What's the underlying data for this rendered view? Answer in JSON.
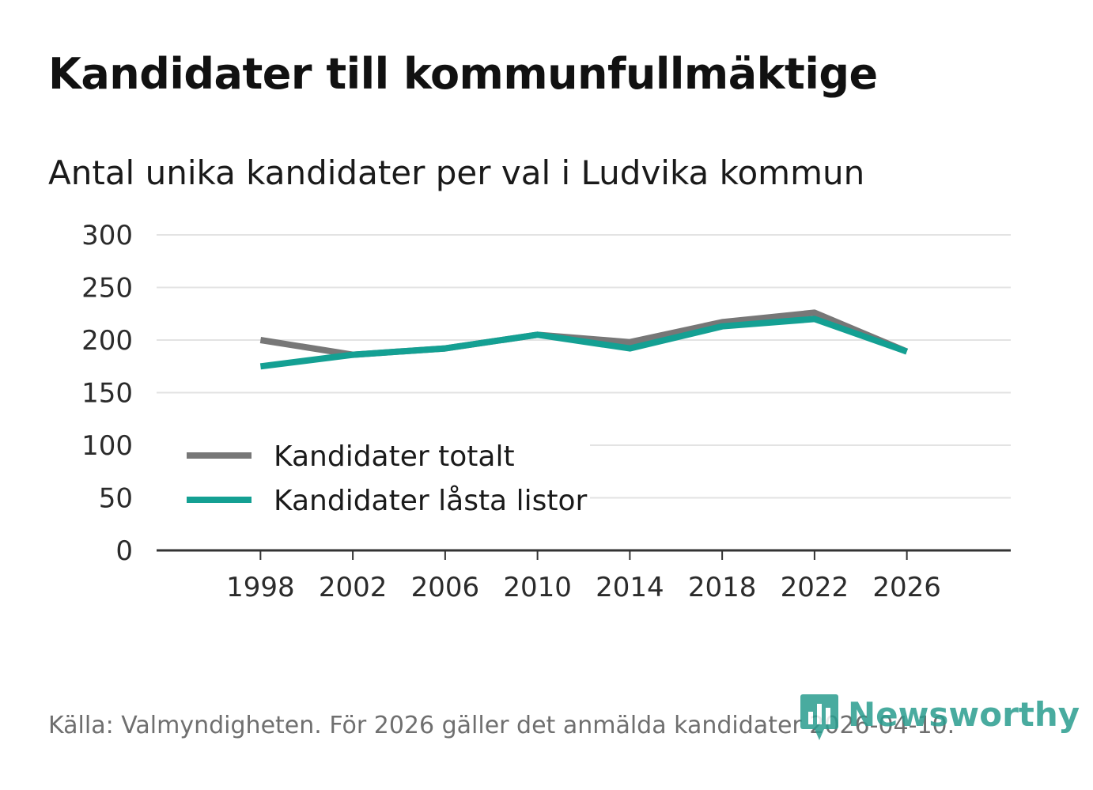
{
  "header": {
    "title": "Kandidater till kommunfullmäktige",
    "subtitle": "Antal unika kandidater per val i Ludvika kommun"
  },
  "chart_data": {
    "type": "line",
    "title": "Kandidater till kommunfullmäktige",
    "subtitle": "Antal unika kandidater per val i Ludvika kommun",
    "xlabel": "",
    "ylabel": "",
    "x": [
      1998,
      2002,
      2006,
      2010,
      2014,
      2018,
      2022,
      2026
    ],
    "x_tick_labels": [
      "1998",
      "2002",
      "2006",
      "2010",
      "2014",
      "2018",
      "2022",
      "2026"
    ],
    "y_ticks": [
      0,
      50,
      100,
      150,
      200,
      250,
      300
    ],
    "y_tick_labels": [
      "0",
      "50",
      "100",
      "150",
      "200",
      "250",
      "300"
    ],
    "xlim": [
      1993.5,
      2030.5
    ],
    "ylim": [
      0,
      300
    ],
    "grid": true,
    "legend_position": "bottom-left",
    "series": [
      {
        "name": "Kandidater totalt",
        "color": "#777777",
        "values": [
          200,
          186,
          192,
          205,
          198,
          217,
          226,
          189
        ]
      },
      {
        "name": "Kandidater låsta listor",
        "color": "#14a093",
        "values": [
          175,
          186,
          192,
          205,
          192,
          213,
          220,
          189
        ]
      }
    ]
  },
  "footer": {
    "source": "Källa: Valmyndigheten. För 2026 gäller det anmälda kandidater 2026-04-10.",
    "logo_text": "Newsworthy",
    "logo_icon": "bar-chart-speech-bubble-icon",
    "logo_color": "#2a9d8f"
  }
}
